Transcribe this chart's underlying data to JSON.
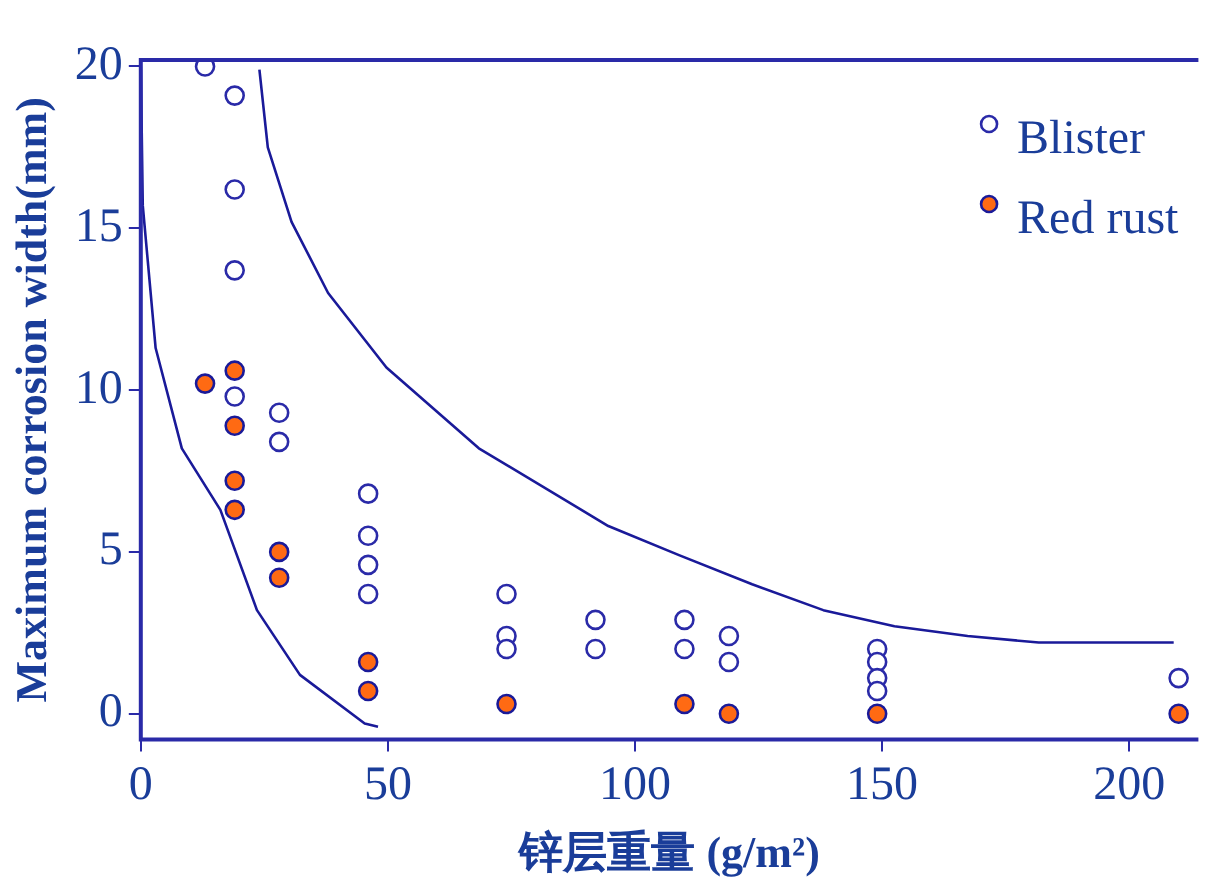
{
  "chart_data": {
    "type": "scatter",
    "xlabel": "锌层重量 (g/m²)",
    "ylabel": "Maximum corrosion width(mm)",
    "xlim": [
      0,
      214
    ],
    "xticks": [
      0,
      50,
      100,
      150,
      200
    ],
    "ylim": [
      -0.8,
      20.2
    ],
    "yticks": [
      0,
      5,
      10,
      15,
      20
    ],
    "grid": false,
    "legend": "top right",
    "marker": "circle",
    "series": [
      {
        "name": "Blister",
        "color": "#2a2aa8",
        "x": [
          13,
          19,
          19,
          19,
          19,
          28,
          28,
          46,
          46,
          46,
          46,
          74,
          74,
          74,
          92,
          92,
          110,
          110,
          119,
          119,
          149,
          149,
          149,
          149,
          210
        ],
        "values": [
          20,
          19.1,
          16.2,
          13.7,
          9.8,
          9.3,
          8.4,
          6.8,
          5.5,
          4.6,
          3.7,
          3.7,
          2.4,
          2.0,
          2.9,
          2.0,
          2.9,
          2.0,
          2.4,
          1.6,
          2.0,
          1.6,
          1.1,
          0.7,
          1.1
        ]
      },
      {
        "name": "Red rust",
        "color": "#ff6a13",
        "x": [
          13,
          19,
          19,
          19,
          19,
          28,
          28,
          46,
          46,
          74,
          110,
          119,
          149,
          210
        ],
        "values": [
          10.2,
          10.6,
          8.9,
          7.2,
          6.3,
          5.0,
          4.2,
          1.6,
          0.7,
          0.3,
          0.3,
          0,
          0,
          0
        ]
      },
      {
        "type": "line",
        "color": "#1a1a99",
        "marker": "none",
        "x": [
          0,
          0.4,
          3,
          8.3,
          16.1,
          23.5,
          32.2,
          45.3,
          48
        ],
        "values": [
          20,
          15.7,
          11.3,
          8.2,
          6.3,
          3.2,
          1.2,
          -0.3,
          -0.4
        ]
      },
      {
        "type": "line",
        "color": "#1a1a99",
        "marker": "none",
        "x": [
          24,
          25.7,
          30.5,
          37.9,
          49.7,
          68.4,
          94.6,
          108.9,
          123.7,
          138.1,
          152.5,
          167.3,
          181.7,
          209
        ],
        "values": [
          19.9,
          17.5,
          15.2,
          13,
          10.7,
          8.2,
          5.8,
          4.9,
          4.0,
          3.2,
          2.7,
          2.4,
          2.2,
          2.2
        ]
      }
    ]
  }
}
